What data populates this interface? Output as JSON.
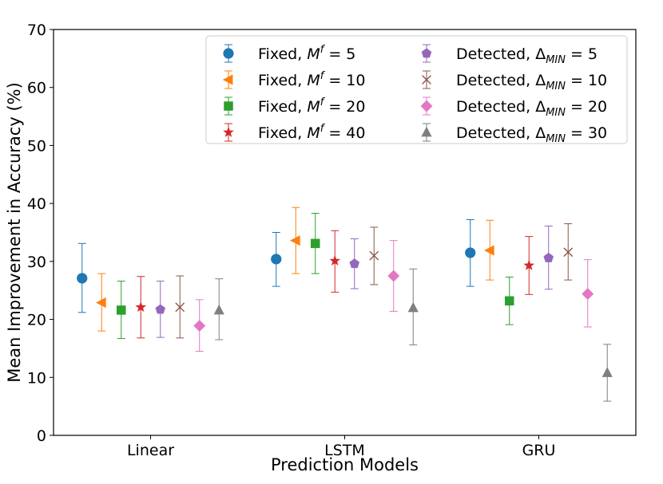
{
  "chart_data": {
    "type": "errorbar",
    "title": "",
    "xlabel": "Prediction Models",
    "ylabel": "Mean Improvement in Accuracy (%)",
    "ylim": [
      0,
      70
    ],
    "yticks": [
      "0",
      "10",
      "20",
      "30",
      "40",
      "50",
      "60",
      "70"
    ],
    "categories": [
      "Linear",
      "LSTM",
      "GRU"
    ],
    "grid": false,
    "legend_position": "top-right",
    "series": [
      {
        "name": "Fixed, $M^f$ = 5",
        "label": {
          "pre": "Fixed, ",
          "var": "M",
          "sup": "f",
          "sub": "",
          "post": " = 5"
        },
        "color": "#1f77b4",
        "marker": "circle",
        "values": [
          27.1,
          30.4,
          31.5
        ],
        "lower": [
          21.2,
          25.7,
          25.7
        ],
        "upper": [
          33.1,
          35.0,
          37.2
        ]
      },
      {
        "name": "Fixed, $M^f$ = 10",
        "label": {
          "pre": "Fixed, ",
          "var": "M",
          "sup": "f",
          "sub": "",
          "post": " = 10"
        },
        "color": "#ff7f0e",
        "marker": "triangle-left",
        "values": [
          22.9,
          33.6,
          31.9
        ],
        "lower": [
          18.0,
          27.9,
          26.8
        ],
        "upper": [
          27.9,
          39.3,
          37.1
        ]
      },
      {
        "name": "Fixed, $M^f$ = 20",
        "label": {
          "pre": "Fixed, ",
          "var": "M",
          "sup": "f",
          "sub": "",
          "post": " = 20"
        },
        "color": "#2ca02c",
        "marker": "square",
        "values": [
          21.6,
          33.1,
          23.2
        ],
        "lower": [
          16.7,
          27.9,
          19.1
        ],
        "upper": [
          26.6,
          38.3,
          27.3
        ]
      },
      {
        "name": "Fixed, $M^f$ = 40",
        "label": {
          "pre": "Fixed, ",
          "var": "M",
          "sup": "f",
          "sub": "",
          "post": " = 40"
        },
        "color": "#d62728",
        "marker": "star",
        "values": [
          22.1,
          30.1,
          29.3
        ],
        "lower": [
          16.8,
          24.7,
          24.3
        ],
        "upper": [
          27.4,
          35.3,
          34.3
        ]
      },
      {
        "name": "Detected, $\\Delta_{MIN}$ = 5",
        "label": {
          "pre": "Detected, ",
          "var": "Δ",
          "sup": "",
          "sub": "MIN",
          "post": " = 5"
        },
        "color": "#9467bd",
        "marker": "pentagon",
        "values": [
          21.7,
          29.6,
          30.6
        ],
        "lower": [
          16.9,
          25.3,
          25.2
        ],
        "upper": [
          26.6,
          33.9,
          36.1
        ]
      },
      {
        "name": "Detected, $\\Delta_{MIN}$ = 10",
        "label": {
          "pre": "Detected, ",
          "var": "Δ",
          "sup": "",
          "sub": "MIN",
          "post": " = 10"
        },
        "color": "#8c564b",
        "marker": "x",
        "values": [
          22.1,
          31.0,
          31.6
        ],
        "lower": [
          16.8,
          26.0,
          26.8
        ],
        "upper": [
          27.5,
          35.9,
          36.5
        ]
      },
      {
        "name": "Detected, $\\Delta_{MIN}$ = 20",
        "label": {
          "pre": "Detected, ",
          "var": "Δ",
          "sup": "",
          "sub": "MIN",
          "post": " = 20"
        },
        "color": "#e377c2",
        "marker": "diamond",
        "values": [
          18.9,
          27.5,
          24.4
        ],
        "lower": [
          14.5,
          21.4,
          18.7
        ],
        "upper": [
          23.4,
          33.6,
          30.3
        ]
      },
      {
        "name": "Detected, $\\Delta_{MIN}$ = 30",
        "label": {
          "pre": "Detected, ",
          "var": "Δ",
          "sup": "",
          "sub": "MIN",
          "post": " = 30"
        },
        "color": "#7f7f7f",
        "marker": "triangle-up",
        "values": [
          21.6,
          22.0,
          10.8
        ],
        "lower": [
          16.5,
          15.6,
          5.9
        ],
        "upper": [
          27.0,
          28.7,
          15.7
        ]
      }
    ]
  }
}
